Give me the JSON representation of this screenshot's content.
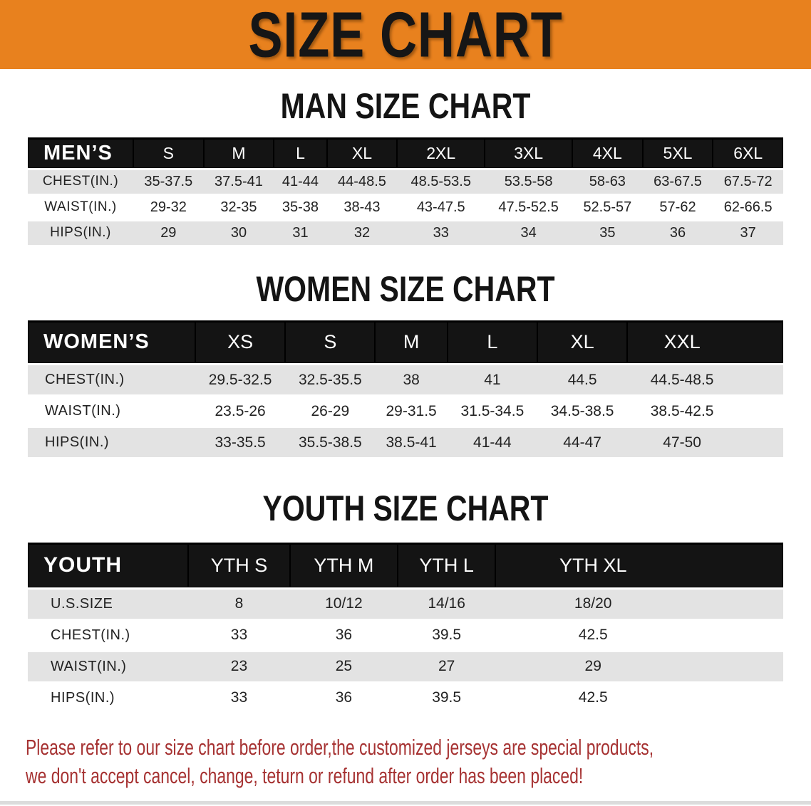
{
  "banner": {
    "title": "SIZE CHART"
  },
  "colors": {
    "banner_bg": "#E8811E",
    "header_bar": "#141414",
    "stripe": "#E3E3E3",
    "notice_text": "#A63232"
  },
  "sections": [
    {
      "id": "men",
      "heading": "MAN SIZE CHART",
      "corner_label": "MEN’S",
      "sizes": [
        "S",
        "M",
        "L",
        "XL",
        "2XL",
        "3XL",
        "4XL",
        "5XL",
        "6XL"
      ],
      "rows": [
        {
          "label": "CHEST(IN.)",
          "values": [
            "35-37.5",
            "37.5-41",
            "41-44",
            "44-48.5",
            "48.5-53.5",
            "53.5-58",
            "58-63",
            "63-67.5",
            "67.5-72"
          ]
        },
        {
          "label": "WAIST(IN.)",
          "values": [
            "29-32",
            "32-35",
            "35-38",
            "38-43",
            "43-47.5",
            "47.5-52.5",
            "52.5-57",
            "57-62",
            "62-66.5"
          ]
        },
        {
          "label": "HIPS(IN.)",
          "values": [
            "29",
            "30",
            "31",
            "32",
            "33",
            "34",
            "35",
            "36",
            "37"
          ]
        }
      ]
    },
    {
      "id": "women",
      "heading": "WOMEN SIZE CHART",
      "corner_label": "WOMEN’S",
      "sizes": [
        "XS",
        "S",
        "M",
        "L",
        "XL",
        "XXL"
      ],
      "rows": [
        {
          "label": "CHEST(IN.)",
          "values": [
            "29.5-32.5",
            "32.5-35.5",
            "38",
            "41",
            "44.5",
            "44.5-48.5"
          ]
        },
        {
          "label": "WAIST(IN.)",
          "values": [
            "23.5-26",
            "26-29",
            "29-31.5",
            "31.5-34.5",
            "34.5-38.5",
            "38.5-42.5"
          ]
        },
        {
          "label": "HIPS(IN.)",
          "values": [
            "33-35.5",
            "35.5-38.5",
            "38.5-41",
            "41-44",
            "44-47",
            "47-50"
          ]
        }
      ]
    },
    {
      "id": "youth",
      "heading": "YOUTH SIZE CHART",
      "corner_label": "YOUTH",
      "sizes": [
        "YTH S",
        "YTH M",
        "YTH L",
        "YTH XL"
      ],
      "rows": [
        {
          "label": "U.S.SIZE",
          "values": [
            "8",
            "10/12",
            "14/16",
            "18/20"
          ]
        },
        {
          "label": "CHEST(IN.)",
          "values": [
            "33",
            "36",
            "39.5",
            "42.5"
          ]
        },
        {
          "label": "WAIST(IN.)",
          "values": [
            "23",
            "25",
            "27",
            "29"
          ]
        },
        {
          "label": "HIPS(IN.)",
          "values": [
            "33",
            "36",
            "39.5",
            "42.5"
          ]
        }
      ]
    }
  ],
  "footer": {
    "line1": "Please refer to our size chart before order,the customized jerseys are special products,",
    "line2": "we don't accept cancel, change, teturn or refund after order has been placed!"
  }
}
